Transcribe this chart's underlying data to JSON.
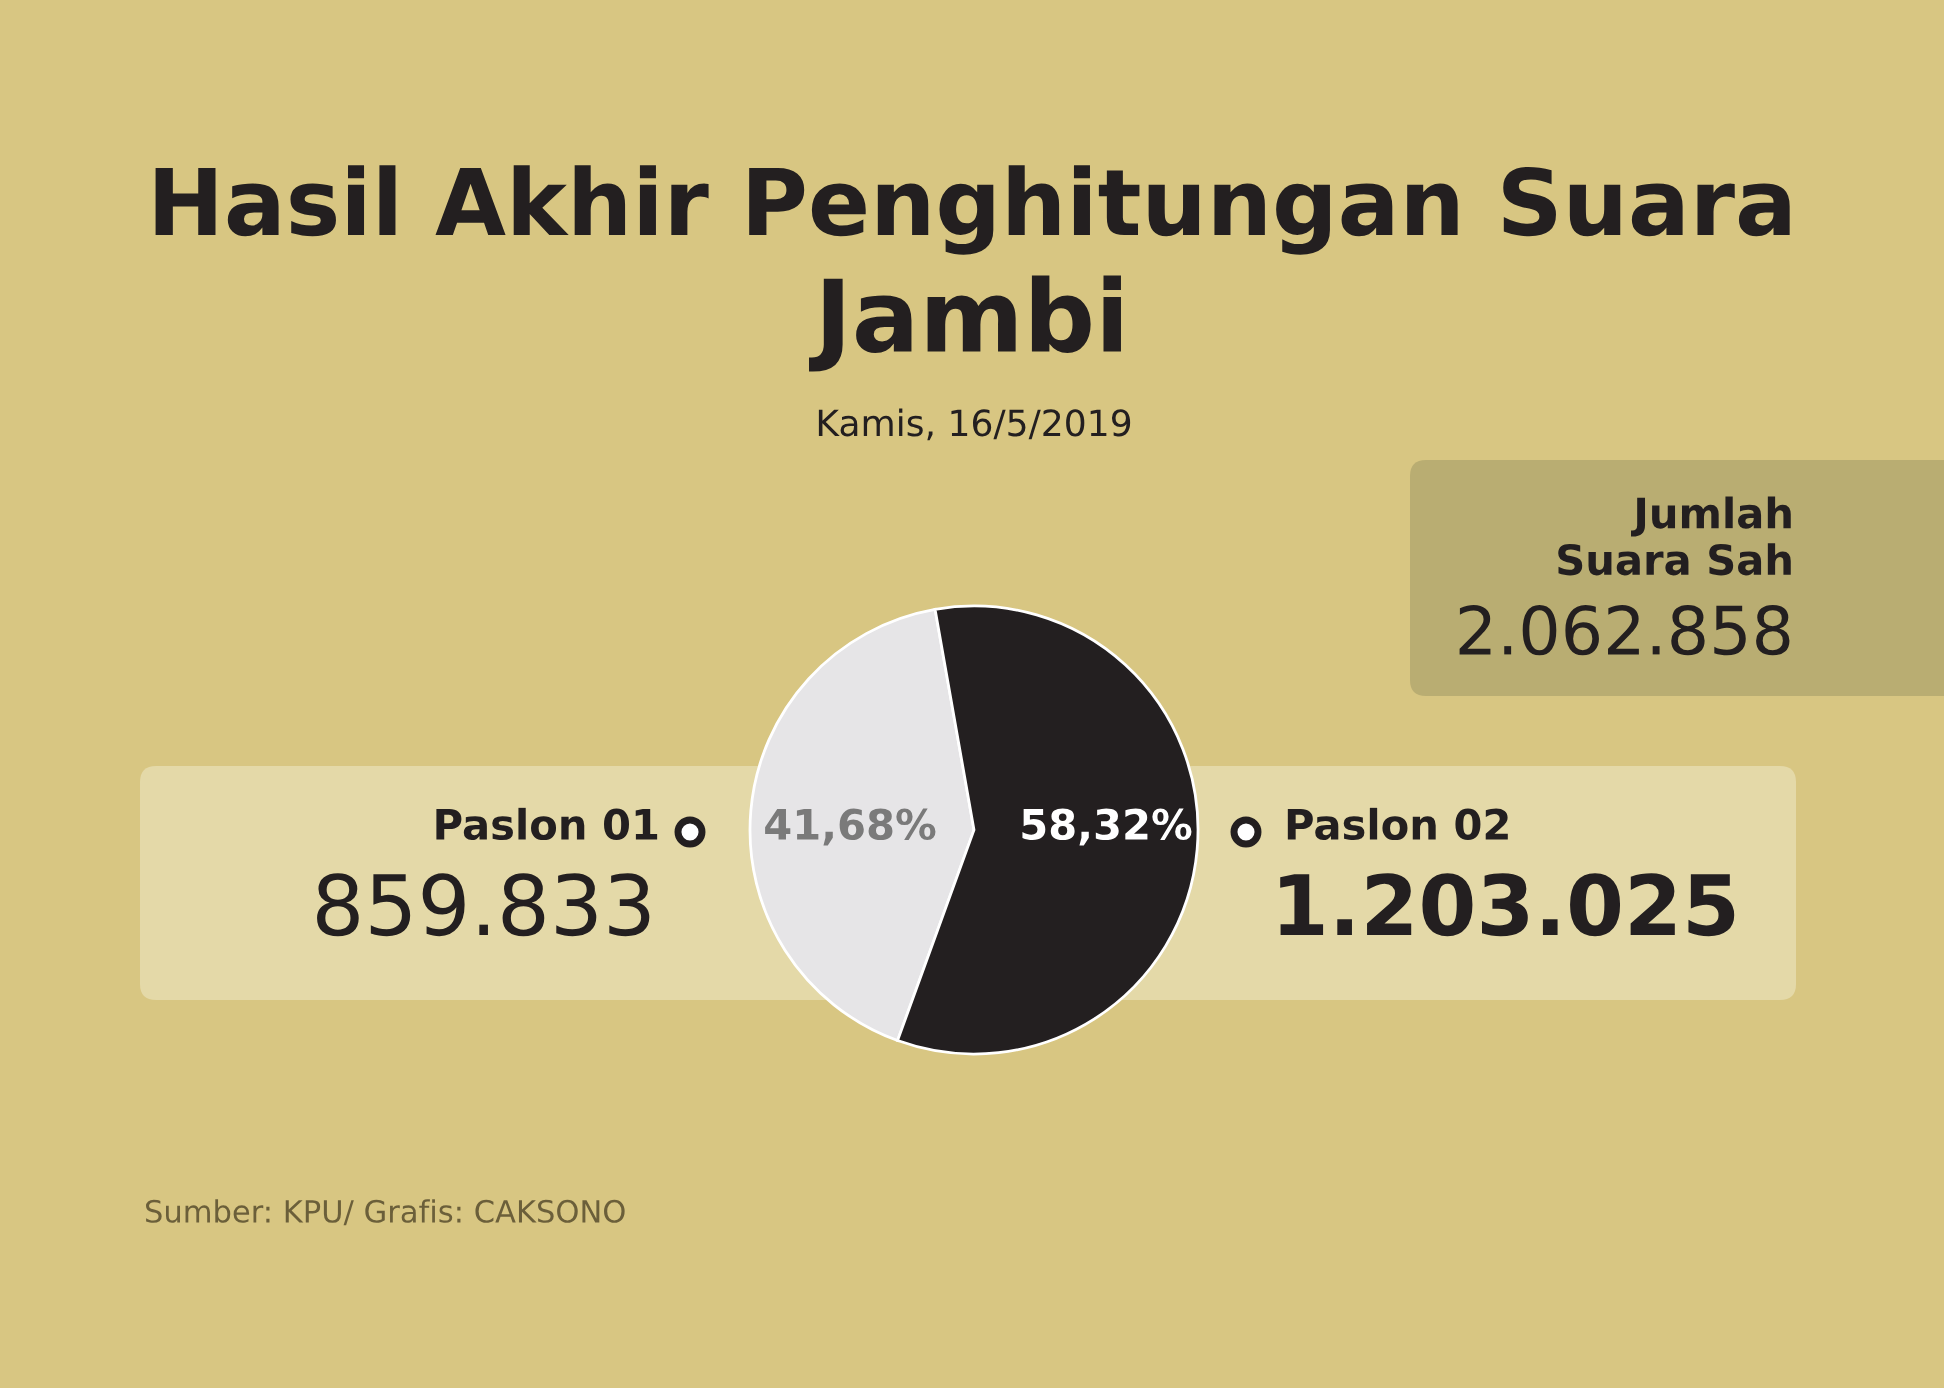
{
  "chart_data": {
    "type": "pie",
    "title": "Hasil Akhir Penghitungan Suara",
    "subtitle": "Jambi",
    "categories": [
      "Paslon 01",
      "Paslon 02"
    ],
    "values": [
      41.68,
      58.32
    ],
    "colors": [
      "#e6e5e7",
      "#231f20"
    ],
    "value_labels": [
      "41,68%",
      "58,32%"
    ],
    "annotations": [
      "Kamis, 16/5/2019",
      "Jumlah\nSuara Sah",
      "2.062.858",
      "859.833",
      "1.203.025",
      "Sumber: KPU/ Grafis: CAKSONO"
    ],
    "legend": false
  }
}
